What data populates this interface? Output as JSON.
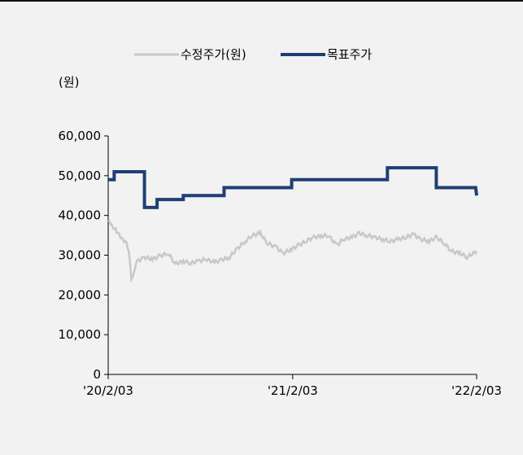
{
  "chart_data": {
    "type": "line",
    "unit_label": "(원)",
    "title": "",
    "xlabel": "",
    "ylabel": "",
    "ylim": [
      0,
      60000
    ],
    "yticks": [
      0,
      10000,
      20000,
      30000,
      40000,
      50000,
      60000
    ],
    "ytick_labels": [
      "0",
      "10,000",
      "20,000",
      "30,000",
      "40,000",
      "50,000",
      "60,000"
    ],
    "xlim": [
      "2020-02-03",
      "2022-02-03"
    ],
    "xticks": [
      "2020-02-03",
      "2021-02-03",
      "2022-02-03"
    ],
    "xtick_labels": [
      "'20/2/03",
      "'21/2/03",
      "'22/2/03"
    ],
    "grid": false,
    "legend_position": "top-center",
    "series": [
      {
        "name": "수정주가(원)",
        "color": "#c8c8c8",
        "style": "line",
        "points": [
          [
            "2020-02-03",
            38500
          ],
          [
            "2020-02-10",
            37500
          ],
          [
            "2020-02-20",
            36000
          ],
          [
            "2020-03-01",
            34000
          ],
          [
            "2020-03-10",
            33500
          ],
          [
            "2020-03-15",
            31000
          ],
          [
            "2020-03-20",
            23500
          ],
          [
            "2020-03-25",
            26000
          ],
          [
            "2020-04-01",
            28500
          ],
          [
            "2020-04-15",
            29500
          ],
          [
            "2020-05-01",
            29000
          ],
          [
            "2020-05-15",
            29800
          ],
          [
            "2020-06-01",
            30500
          ],
          [
            "2020-06-15",
            27800
          ],
          [
            "2020-07-01",
            28500
          ],
          [
            "2020-07-15",
            28000
          ],
          [
            "2020-08-01",
            28500
          ],
          [
            "2020-08-15",
            29000
          ],
          [
            "2020-09-01",
            28200
          ],
          [
            "2020-09-15",
            28800
          ],
          [
            "2020-10-01",
            29500
          ],
          [
            "2020-10-15",
            31500
          ],
          [
            "2020-11-01",
            33500
          ],
          [
            "2020-11-15",
            35000
          ],
          [
            "2020-12-01",
            35500
          ],
          [
            "2020-12-15",
            33000
          ],
          [
            "2021-01-01",
            32000
          ],
          [
            "2021-01-15",
            30500
          ],
          [
            "2021-02-01",
            31500
          ],
          [
            "2021-02-15",
            32500
          ],
          [
            "2021-03-01",
            33500
          ],
          [
            "2021-03-15",
            34500
          ],
          [
            "2021-04-01",
            34800
          ],
          [
            "2021-04-15",
            35000
          ],
          [
            "2021-05-01",
            32500
          ],
          [
            "2021-05-15",
            34000
          ],
          [
            "2021-06-01",
            34500
          ],
          [
            "2021-06-15",
            35500
          ],
          [
            "2021-07-01",
            35000
          ],
          [
            "2021-07-15",
            34500
          ],
          [
            "2021-08-01",
            34000
          ],
          [
            "2021-08-15",
            33500
          ],
          [
            "2021-09-01",
            34000
          ],
          [
            "2021-09-15",
            34500
          ],
          [
            "2021-10-01",
            35200
          ],
          [
            "2021-10-15",
            34000
          ],
          [
            "2021-11-01",
            33500
          ],
          [
            "2021-11-15",
            34500
          ],
          [
            "2021-12-01",
            33000
          ],
          [
            "2021-12-15",
            31000
          ],
          [
            "2022-01-01",
            30500
          ],
          [
            "2022-01-15",
            29500
          ],
          [
            "2022-02-03",
            31000
          ]
        ]
      },
      {
        "name": "목표주가",
        "color": "#1f3f73",
        "style": "step",
        "points": [
          [
            "2020-02-03",
            49000
          ],
          [
            "2020-02-15",
            49000
          ],
          [
            "2020-02-15",
            51000
          ],
          [
            "2020-04-15",
            51000
          ],
          [
            "2020-04-15",
            42000
          ],
          [
            "2020-05-10",
            42000
          ],
          [
            "2020-05-10",
            44000
          ],
          [
            "2020-07-01",
            44000
          ],
          [
            "2020-07-01",
            45000
          ],
          [
            "2020-09-20",
            45000
          ],
          [
            "2020-09-20",
            47000
          ],
          [
            "2021-02-01",
            47000
          ],
          [
            "2021-02-01",
            49000
          ],
          [
            "2021-08-10",
            49000
          ],
          [
            "2021-08-10",
            52000
          ],
          [
            "2021-11-15",
            52000
          ],
          [
            "2021-11-15",
            47000
          ],
          [
            "2022-02-01",
            47000
          ],
          [
            "2022-02-03",
            45000
          ]
        ]
      }
    ]
  }
}
